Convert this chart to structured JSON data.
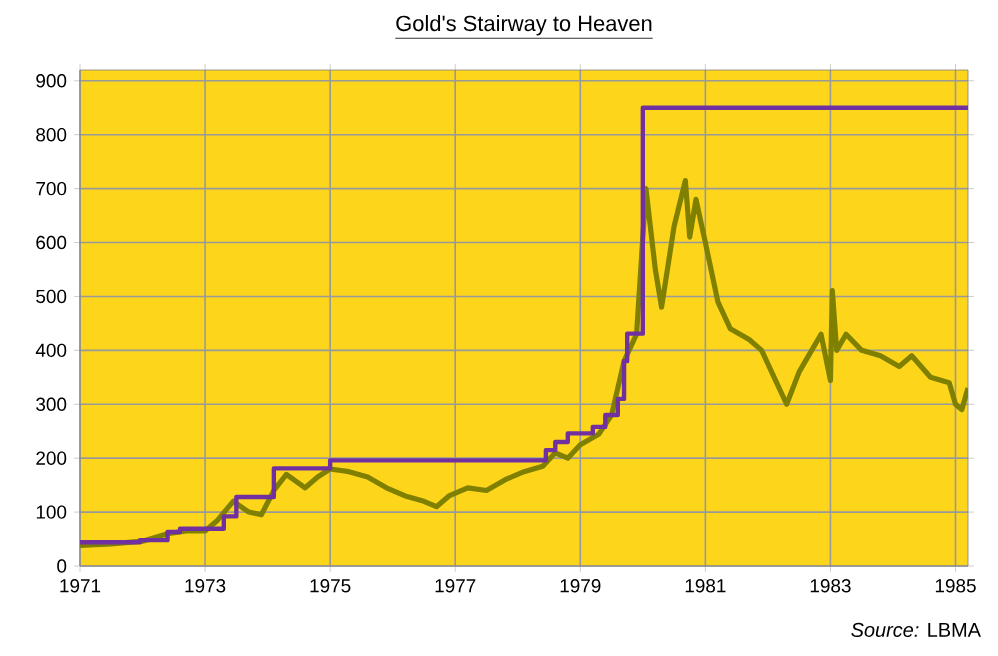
{
  "chart_data": {
    "type": "line",
    "title": "Gold's Stairway to Heaven",
    "xlim": [
      1971,
      1985.2
    ],
    "xticks": [
      1971,
      1973,
      1975,
      1977,
      1979,
      1981,
      1983,
      1985
    ],
    "ylim": [
      0,
      920
    ],
    "yticks": [
      0,
      100,
      200,
      300,
      400,
      500,
      600,
      700,
      800,
      900
    ],
    "grid": true,
    "marker": "none",
    "line_style": "solid",
    "annotations": [
      "*Source:* LBMA"
    ],
    "series": [
      {
        "color": "#808000",
        "x": [
          1971.0,
          1971.5,
          1972.0,
          1972.4,
          1972.7,
          1973.0,
          1973.2,
          1973.45,
          1973.7,
          1973.9,
          1974.1,
          1974.3,
          1974.6,
          1974.8,
          1975.0,
          1975.3,
          1975.6,
          1975.9,
          1976.2,
          1976.5,
          1976.7,
          1976.9,
          1977.2,
          1977.5,
          1977.8,
          1978.1,
          1978.4,
          1978.6,
          1978.8,
          1979.0,
          1979.3,
          1979.5,
          1979.7,
          1979.9,
          1980.05,
          1980.2,
          1980.3,
          1980.5,
          1980.68,
          1980.75,
          1980.85,
          1981.0,
          1981.2,
          1981.4,
          1981.7,
          1981.9,
          1982.1,
          1982.3,
          1982.5,
          1982.7,
          1982.85,
          1983.0,
          1983.03,
          1983.1,
          1983.25,
          1983.5,
          1983.8,
          1984.1,
          1984.3,
          1984.6,
          1984.9,
          1985.0,
          1985.1,
          1985.2
        ],
        "values": [
          38,
          41,
          46,
          60,
          65,
          65,
          85,
          120,
          100,
          95,
          140,
          170,
          145,
          165,
          180,
          175,
          165,
          145,
          130,
          120,
          110,
          130,
          145,
          140,
          160,
          175,
          185,
          210,
          200,
          225,
          245,
          280,
          380,
          430,
          700,
          550,
          480,
          630,
          715,
          610,
          680,
          600,
          490,
          440,
          420,
          400,
          350,
          300,
          360,
          400,
          430,
          344,
          511,
          400,
          430,
          400,
          390,
          370,
          390,
          350,
          340,
          300,
          290,
          330
        ]
      },
      {
        "type": "step",
        "color": "#7030a0",
        "x": [
          1971.0,
          1971.96,
          1972.4,
          1972.6,
          1973.3,
          1973.5,
          1974.1,
          1975.0,
          1978.45,
          1978.6,
          1978.8,
          1979.2,
          1979.4,
          1979.6,
          1979.7,
          1979.75,
          1980.0,
          1985.2
        ],
        "values": [
          44,
          48,
          63,
          69,
          92,
          128,
          181,
          196,
          215,
          230,
          246,
          258,
          280,
          310,
          380,
          431,
          850,
          850
        ]
      }
    ]
  }
}
